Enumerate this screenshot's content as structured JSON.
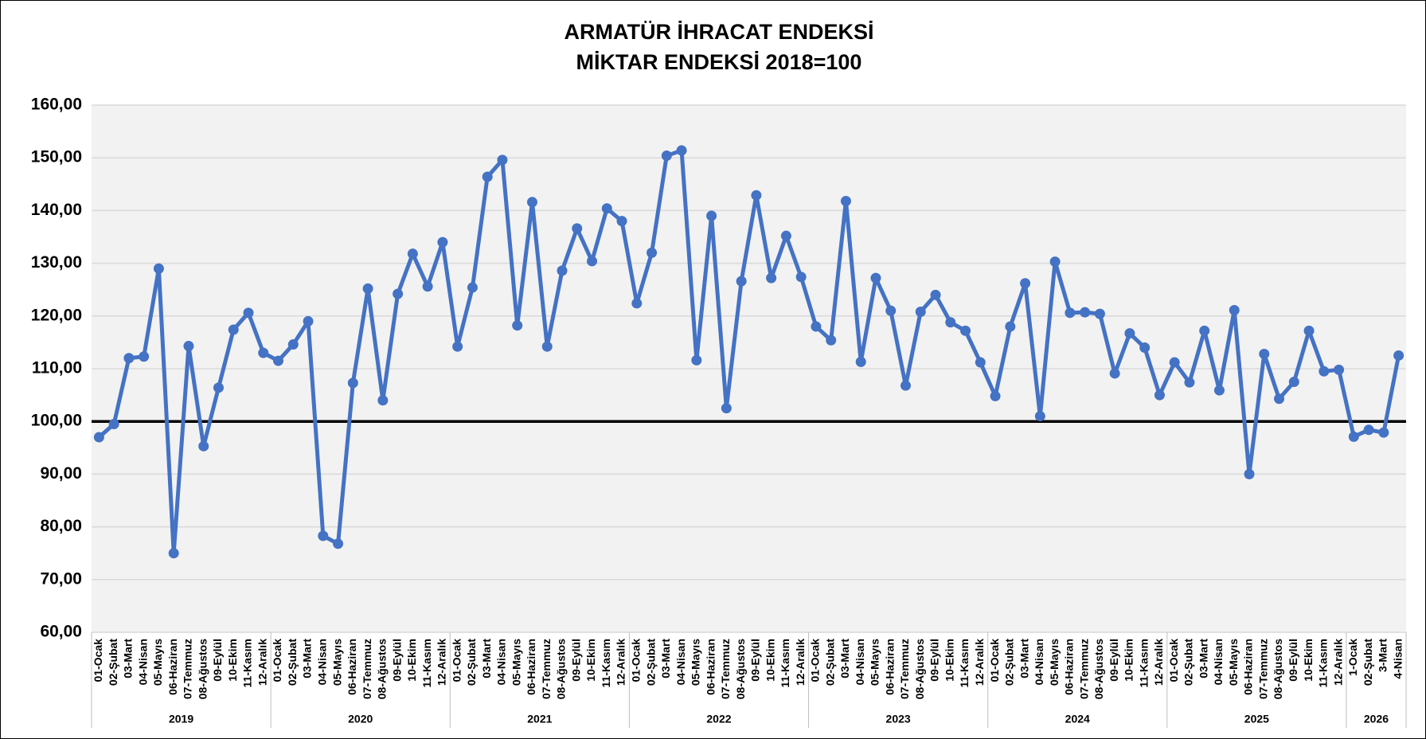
{
  "chart_data": {
    "type": "line",
    "title": "ARMATÜR İHRACAT ENDEKSİ",
    "subtitle": "MİKTAR ENDEKSİ 2018=100",
    "categories": [
      "01-Ocak",
      "02-Şubat",
      "03-Mart",
      "04-Nisan",
      "05-Mayıs",
      "06-Haziran",
      "07-Temmuz",
      "08-Ağustos",
      "09-Eylül",
      "10-Ekim",
      "11-Kasım",
      "12-Aralık",
      "01-Ocak",
      "02-Şubat",
      "03-Mart",
      "04-Nisan",
      "05-Mayıs",
      "06-Haziran",
      "07-Temmuz",
      "08-Ağustos",
      "09-Eylül",
      "10-Ekim",
      "11-Kasım",
      "12-Aralık",
      "01-Ocak",
      "02-Şubat",
      "03-Mart",
      "04-Nisan",
      "05-Mayıs",
      "06-Haziran",
      "07-Temmuz",
      "08-Ağustos",
      "09-Eylül",
      "10-Ekim",
      "11-Kasım",
      "12-Aralık",
      "01-Ocak",
      "02-Şubat",
      "03-Mart",
      "04-Nisan",
      "05-Mayıs",
      "06-Haziran",
      "07-Temmuz",
      "08-Ağustos",
      "09-Eylül",
      "10-Ekim",
      "11-Kasım",
      "12-Aralık",
      "01-Ocak",
      "02-Şubat",
      "03-Mart",
      "04-Nisan",
      "05-Mayıs",
      "06-Haziran",
      "07-Temmuz",
      "08-Ağustos",
      "09-Eylül",
      "10-Ekim",
      "11-Kasım",
      "12-Aralık",
      "01-Ocak",
      "02-Şubat",
      "03-Mart",
      "04-Nisan",
      "05-Mayıs",
      "06-Haziran",
      "07-Temmuz",
      "08-Ağustos",
      "09-Eylül",
      "10-Ekim",
      "11-Kasım",
      "12-Aralık",
      "01-Ocak",
      "02-Şubat",
      "03-Mart",
      "04-Nisan",
      "05-Mayıs",
      "06-Haziran",
      "07-Temmuz",
      "08-Ağustos",
      "09-Eylül",
      "10-Ekim",
      "11-Kasım",
      "12-Aralık",
      "1-Ocak",
      "02-Şubat",
      "3-Mart",
      "4-Nisan"
    ],
    "x_groups": [
      "2019",
      "2020",
      "2021",
      "2022",
      "2023",
      "2024",
      "2025",
      "2026"
    ],
    "values": [
      97,
      99.5,
      112,
      112.3,
      129,
      75,
      114.3,
      95.3,
      106.4,
      117.4,
      120.6,
      113,
      111.5,
      114.6,
      119,
      78.3,
      76.8,
      107.3,
      125.2,
      104,
      124.2,
      131.8,
      125.6,
      134,
      114.2,
      125.4,
      146.4,
      149.6,
      118.2,
      141.6,
      114.2,
      128.6,
      136.6,
      130.4,
      140.4,
      138,
      122.4,
      132,
      150.4,
      151.4,
      111.6,
      139,
      102.5,
      126.6,
      142.9,
      127.2,
      135.2,
      127.4,
      118,
      115.4,
      141.8,
      111.3,
      127.2,
      121,
      106.8,
      120.8,
      124,
      118.8,
      117.2,
      111.2,
      104.8,
      118,
      126.2,
      101,
      130.3,
      120.6,
      120.7,
      120.4,
      109.1,
      116.7,
      114,
      105,
      111.2,
      107.4,
      117.2,
      105.9,
      121.1,
      90,
      112.8,
      104.3,
      107.5,
      117.2,
      109.5,
      109.8,
      97.1,
      98.4,
      97.9,
      112.5
    ],
    "color": "#4472c4",
    "reference_line": 100,
    "ylim": [
      60,
      160
    ],
    "yticks": [
      {
        "value": 60,
        "label": "60,00"
      },
      {
        "value": 70,
        "label": "70,00"
      },
      {
        "value": 80,
        "label": "80,00"
      },
      {
        "value": 90,
        "label": "90,00"
      },
      {
        "value": 100,
        "label": "100,00"
      },
      {
        "value": 110,
        "label": "110,00"
      },
      {
        "value": 120,
        "label": "120,00"
      },
      {
        "value": 130,
        "label": "130,00"
      },
      {
        "value": 140,
        "label": "140,00"
      },
      {
        "value": 150,
        "label": "150,00"
      },
      {
        "value": 160,
        "label": "160,00"
      }
    ],
    "grid": true
  }
}
